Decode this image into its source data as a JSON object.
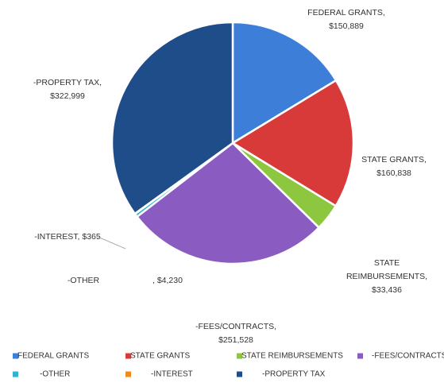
{
  "chart_data": {
    "type": "pie",
    "categories": [
      "FEDERAL GRANTS",
      "STATE GRANTS",
      "STATE REIMBURSEMENTS",
      "-FEES/CONTRACTS",
      "-OTHER",
      "-INTEREST",
      "-PROPERTY TAX"
    ],
    "values": [
      150889,
      160838,
      33436,
      251528,
      4230,
      365,
      322999
    ],
    "value_labels": [
      [
        "FEDERAL GRANTS,",
        "$150,889"
      ],
      [
        "STATE GRANTS,",
        "$160,838"
      ],
      [
        "STATE",
        "REIMBURSEMENTS,",
        "$33,436"
      ],
      [
        "-FEES/CONTRACTS,",
        "$251,528"
      ],
      [
        "-OTHER",
        ", $4,230"
      ],
      [
        "-INTEREST, $365"
      ],
      [
        "-PROPERTY TAX,",
        "$322,999"
      ]
    ],
    "colors": [
      "#3d7fd8",
      "#d83a3a",
      "#8dc63f",
      "#8a5cc2",
      "#2fb3cf",
      "#f08a1d",
      "#1f4d8a"
    ],
    "legend": "bottom"
  }
}
